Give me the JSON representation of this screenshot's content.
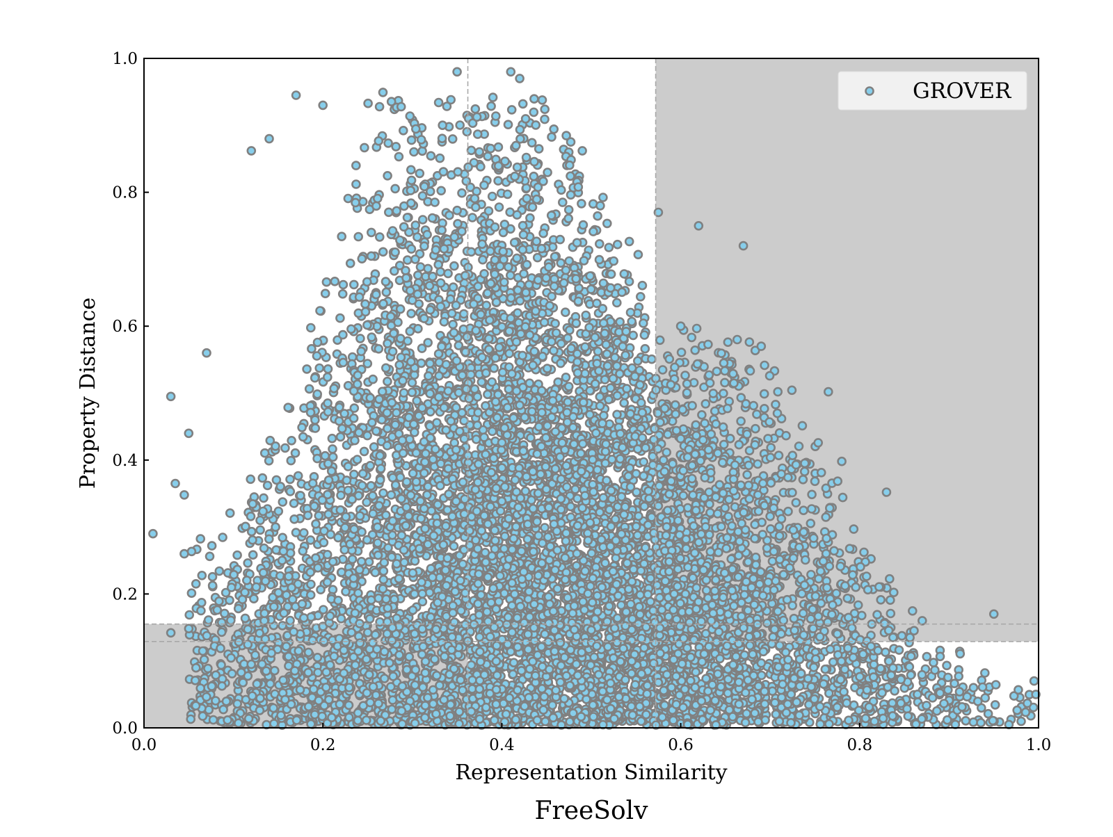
{
  "chart_data": {
    "type": "scatter",
    "title": "FreeSolv",
    "xlabel": "Representation Similarity",
    "ylabel": "Property Distance",
    "xlim": [
      0.0,
      1.0
    ],
    "ylim": [
      0.0,
      1.0
    ],
    "x_ticks": [
      0.0,
      0.2,
      0.4,
      0.6,
      0.8,
      1.0
    ],
    "x_tick_labels": [
      "0.0",
      "0.2",
      "0.4",
      "0.6",
      "0.8",
      "1.0"
    ],
    "y_ticks": [
      0.0,
      0.2,
      0.4,
      0.6,
      0.8,
      1.0
    ],
    "y_tick_labels": [
      "0.0",
      "0.2",
      "0.4",
      "0.6",
      "0.8",
      "1.0"
    ],
    "grid": false,
    "legend": {
      "position": "top-right",
      "entries": [
        "GROVER"
      ]
    },
    "series": [
      {
        "name": "GROVER",
        "marker_face_color": "#87ceeb",
        "marker_edge_color": "#808080",
        "approx_point_count": 20000,
        "sample_points": [
          [
            0.01,
            0.29
          ],
          [
            0.03,
            0.142
          ],
          [
            0.03,
            0.495
          ],
          [
            0.035,
            0.365
          ],
          [
            0.045,
            0.26
          ],
          [
            0.045,
            0.348
          ],
          [
            0.05,
            0.44
          ],
          [
            0.07,
            0.56
          ],
          [
            0.12,
            0.862
          ],
          [
            0.14,
            0.88
          ],
          [
            0.17,
            0.945
          ],
          [
            0.2,
            0.93
          ],
          [
            0.35,
            0.98
          ],
          [
            0.41,
            0.98
          ],
          [
            0.42,
            0.97
          ],
          [
            0.49,
            0.862
          ],
          [
            0.51,
            0.78
          ],
          [
            0.575,
            0.77
          ],
          [
            0.62,
            0.75
          ],
          [
            0.67,
            0.72
          ],
          [
            0.6,
            0.6
          ],
          [
            0.69,
            0.57
          ],
          [
            0.765,
            0.502
          ],
          [
            0.78,
            0.398
          ],
          [
            0.83,
            0.352
          ],
          [
            0.87,
            0.16
          ],
          [
            0.95,
            0.17
          ],
          [
            0.94,
            0.082
          ],
          [
            0.995,
            0.07
          ],
          [
            0.997,
            0.05
          ]
        ]
      }
    ],
    "regions": [
      {
        "kind": "shaded",
        "x": [
          0.572,
          1.0
        ],
        "y": [
          0.129,
          1.0
        ],
        "color": "#cccccc"
      },
      {
        "kind": "shaded",
        "x": [
          0.0,
          0.362
        ],
        "y": [
          0.0,
          0.155
        ],
        "color": "#cccccc"
      }
    ],
    "reference_lines": [
      {
        "orientation": "vertical",
        "value": 0.362,
        "style": "dashed",
        "color": "#a8a8a8"
      },
      {
        "orientation": "vertical",
        "value": 0.572,
        "style": "dashed",
        "color": "#a8a8a8"
      },
      {
        "orientation": "horizontal",
        "value": 0.155,
        "style": "dashed",
        "color": "#a8a8a8"
      },
      {
        "orientation": "horizontal",
        "value": 0.129,
        "style": "dashed",
        "color": "#a8a8a8"
      }
    ]
  }
}
